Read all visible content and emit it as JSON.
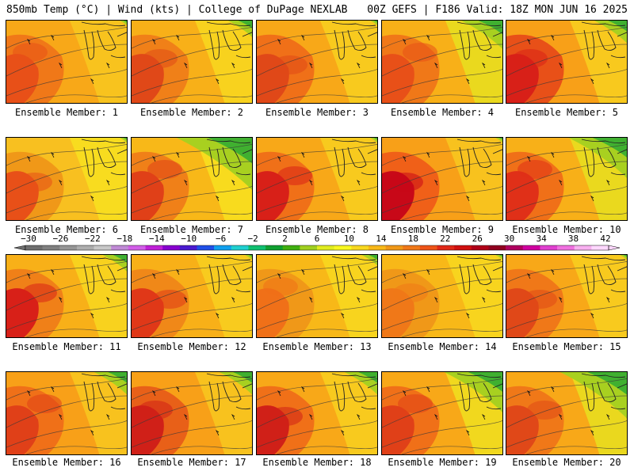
{
  "header": {
    "left": "850mb Temp (°C) | Wind (kts) | College of DuPage NEXLAB",
    "right": "00Z GEFS | F186 Valid: 18Z MON JUN 16 2025"
  },
  "colorbar": {
    "labels": [
      "−30",
      "−26",
      "−22",
      "−18",
      "−14",
      "−10",
      "−6",
      "−2",
      "2",
      "6",
      "10",
      "14",
      "18",
      "22",
      "26",
      "30",
      "34",
      "38",
      "42"
    ],
    "colors": [
      "#6e6e6e",
      "#808080",
      "#969696",
      "#aeaeae",
      "#c8c8c8",
      "#c08ad6",
      "#d25ee8",
      "#c020d8",
      "#8800d0",
      "#4a1ad0",
      "#2050e8",
      "#10a0ef",
      "#20d0d0",
      "#10c070",
      "#10a030",
      "#40b010",
      "#a0d020",
      "#e0ec20",
      "#f8f820",
      "#f8d820",
      "#f8b818",
      "#f09818",
      "#f07818",
      "#ee5418",
      "#e02818",
      "#d01010",
      "#b00018",
      "#900020",
      "#b00060",
      "#d000a0",
      "#e040d0",
      "#f070e0",
      "#f8b0f0",
      "#ffd8ff"
    ]
  },
  "panels": [
    {
      "label": "Ensemble Member: 1",
      "palette": [
        "#f8a818",
        "#f07818",
        "#e85018",
        "#f8c820"
      ],
      "green": 0.05
    },
    {
      "label": "Ensemble Member: 2",
      "palette": [
        "#f8b018",
        "#f08018",
        "#e04818",
        "#f8d820"
      ],
      "green": 0.15
    },
    {
      "label": "Ensemble Member: 3",
      "palette": [
        "#f8a818",
        "#f07018",
        "#e04818",
        "#f8d020"
      ],
      "green": 0.05
    },
    {
      "label": "Ensemble Member: 4",
      "palette": [
        "#f8b018",
        "#f07818",
        "#e85018",
        "#e8e020"
      ],
      "green": 0.25
    },
    {
      "label": "Ensemble Member: 5",
      "palette": [
        "#f8a018",
        "#e85018",
        "#d82018",
        "#f8d020"
      ],
      "green": 0.2
    },
    {
      "label": "Ensemble Member: 6",
      "palette": [
        "#f8c020",
        "#f09818",
        "#e85018",
        "#f8e020"
      ],
      "green": 0.05
    },
    {
      "label": "Ensemble Member: 7",
      "palette": [
        "#f8b818",
        "#f08018",
        "#e04018",
        "#f8e020"
      ],
      "green": 0.45
    },
    {
      "label": "Ensemble Member: 8",
      "palette": [
        "#f8a818",
        "#f07018",
        "#d82018",
        "#f8d020"
      ],
      "green": 0.05
    },
    {
      "label": "Ensemble Member: 9",
      "palette": [
        "#f8a018",
        "#f06018",
        "#c80818",
        "#f8c820"
      ],
      "green": 0.05
    },
    {
      "label": "Ensemble Member: 10",
      "palette": [
        "#f8b018",
        "#f07018",
        "#e03018",
        "#e8e020"
      ],
      "green": 0.35
    },
    {
      "label": "Ensemble Member: 11",
      "palette": [
        "#f8b018",
        "#f08018",
        "#d82018",
        "#f8d820"
      ],
      "green": 0.15
    },
    {
      "label": "Ensemble Member: 12",
      "palette": [
        "#f8b018",
        "#f08818",
        "#e03818",
        "#f8d020"
      ],
      "green": 0.05
    },
    {
      "label": "Ensemble Member: 13",
      "palette": [
        "#f8b818",
        "#f09818",
        "#f07018",
        "#f8d820"
      ],
      "green": 0.1
    },
    {
      "label": "Ensemble Member: 14",
      "palette": [
        "#f8b818",
        "#f09818",
        "#f07818",
        "#f8d820"
      ],
      "green": 0.05
    },
    {
      "label": "Ensemble Member: 15",
      "palette": [
        "#f8a818",
        "#f07818",
        "#e04818",
        "#f8d020"
      ],
      "green": 0.05
    },
    {
      "label": "Ensemble Member: 16",
      "palette": [
        "#f8a018",
        "#f07018",
        "#e04018",
        "#f8c820"
      ],
      "green": 0.2
    },
    {
      "label": "Ensemble Member: 17",
      "palette": [
        "#f8a018",
        "#e86018",
        "#d02018",
        "#f8c820"
      ],
      "green": 0.2
    },
    {
      "label": "Ensemble Member: 18",
      "palette": [
        "#f8a818",
        "#f07018",
        "#d02018",
        "#f8d020"
      ],
      "green": 0.2
    },
    {
      "label": "Ensemble Member: 19",
      "palette": [
        "#f8a818",
        "#f07018",
        "#e04018",
        "#f0e020"
      ],
      "green": 0.35
    },
    {
      "label": "Ensemble Member: 20",
      "palette": [
        "#f8a818",
        "#f07818",
        "#e04818",
        "#e8e020"
      ],
      "green": 0.4
    }
  ]
}
